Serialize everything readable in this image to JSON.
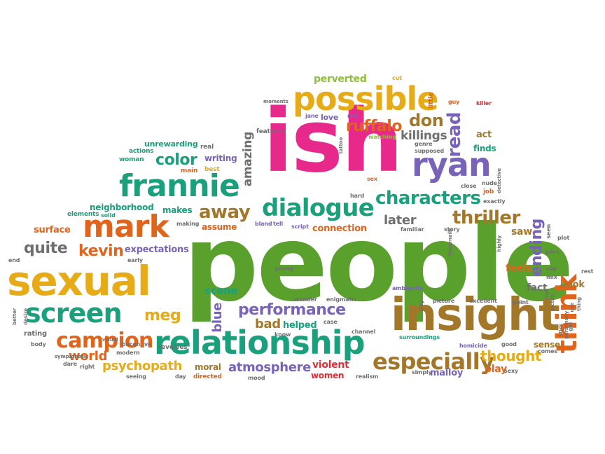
{
  "colors": {
    "green": "#5aa02c",
    "pink": "#e8298c",
    "yellow": "#e6ab17",
    "orange": "#e0641c",
    "teal": "#1aa07c",
    "purple": "#7863b8",
    "brown": "#a2772a",
    "gray": "#6f6f6f",
    "red": "#d8313a",
    "lime": "#8fbf3a"
  },
  "words": [
    {
      "text": "people",
      "color": "green"
    },
    {
      "text": "ish",
      "color": "pink"
    },
    {
      "text": "insight",
      "color": "brown"
    },
    {
      "text": "sexual",
      "color": "yellow"
    },
    {
      "text": "relationship",
      "color": "teal"
    },
    {
      "text": "possible",
      "color": "yellow"
    },
    {
      "text": "frannie",
      "color": "teal"
    },
    {
      "text": "mark",
      "color": "orange"
    },
    {
      "text": "ryan",
      "color": "purple"
    },
    {
      "text": "dialogue",
      "color": "teal"
    },
    {
      "text": "screen",
      "color": "teal"
    },
    {
      "text": "especially",
      "color": "brown"
    },
    {
      "text": "campion",
      "color": "orange"
    },
    {
      "text": "characters",
      "color": "teal"
    },
    {
      "text": "think",
      "color": "orange"
    },
    {
      "text": "performance",
      "color": "purple"
    },
    {
      "text": "away",
      "color": "brown"
    },
    {
      "text": "ruffalo",
      "color": "orange"
    },
    {
      "text": "don",
      "color": "brown"
    },
    {
      "text": "read",
      "color": "purple"
    },
    {
      "text": "thriller",
      "color": "brown"
    },
    {
      "text": "quite",
      "color": "gray"
    },
    {
      "text": "kevin",
      "color": "orange"
    },
    {
      "text": "color",
      "color": "teal"
    },
    {
      "text": "meg",
      "color": "yellow"
    },
    {
      "text": "psychopath",
      "color": "yellow"
    },
    {
      "text": "atmosphere",
      "color": "purple"
    },
    {
      "text": "thought",
      "color": "yellow"
    },
    {
      "text": "ending",
      "color": "purple"
    },
    {
      "text": "killings",
      "color": "gray"
    },
    {
      "text": "later",
      "color": "gray"
    },
    {
      "text": "world",
      "color": "orange"
    },
    {
      "text": "bad",
      "color": "brown"
    },
    {
      "text": "blue",
      "color": "purple"
    },
    {
      "text": "amazing",
      "color": "gray"
    },
    {
      "text": "perverted",
      "color": "lime"
    },
    {
      "text": "writing",
      "color": "purple"
    },
    {
      "text": "neighborhood",
      "color": "teal"
    },
    {
      "text": "makes",
      "color": "teal"
    },
    {
      "text": "expectations",
      "color": "purple"
    },
    {
      "text": "assume",
      "color": "orange"
    },
    {
      "text": "scene",
      "color": "teal"
    },
    {
      "text": "helped",
      "color": "teal"
    },
    {
      "text": "connection",
      "color": "orange"
    },
    {
      "text": "violent",
      "color": "red"
    },
    {
      "text": "women",
      "color": "red"
    },
    {
      "text": "malloy",
      "color": "purple"
    },
    {
      "text": "play",
      "color": "orange"
    },
    {
      "text": "feels",
      "color": "orange"
    },
    {
      "text": "fact",
      "color": "gray"
    },
    {
      "text": "saw",
      "color": "brown"
    },
    {
      "text": "book",
      "color": "brown"
    },
    {
      "text": "sense",
      "color": "brown"
    },
    {
      "text": "moral",
      "color": "brown"
    },
    {
      "text": "revolves",
      "color": "gray"
    },
    {
      "text": "finds",
      "color": "teal"
    },
    {
      "text": "act",
      "color": "brown"
    },
    {
      "text": "features",
      "color": "gray"
    },
    {
      "text": "love",
      "color": "purple"
    },
    {
      "text": "watching",
      "color": "lime"
    },
    {
      "text": "unrewarding",
      "color": "teal"
    },
    {
      "text": "surface",
      "color": "orange"
    },
    {
      "text": "elements",
      "color": "teal"
    },
    {
      "text": "solid",
      "color": "teal"
    },
    {
      "text": "actions",
      "color": "teal"
    },
    {
      "text": "woman",
      "color": "teal"
    },
    {
      "text": "real",
      "color": "gray"
    },
    {
      "text": "main",
      "color": "orange"
    },
    {
      "text": "best",
      "color": "yellow"
    },
    {
      "text": "making",
      "color": "gray"
    },
    {
      "text": "bland",
      "color": "purple"
    },
    {
      "text": "tell",
      "color": "purple"
    },
    {
      "text": "script",
      "color": "purple"
    },
    {
      "text": "familiar",
      "color": "gray"
    },
    {
      "text": "story",
      "color": "gray"
    },
    {
      "text": "hard",
      "color": "gray"
    },
    {
      "text": "sex",
      "color": "orange"
    },
    {
      "text": "job",
      "color": "orange"
    },
    {
      "text": "exactly",
      "color": "gray"
    },
    {
      "text": "close",
      "color": "gray"
    },
    {
      "text": "nude",
      "color": "gray"
    },
    {
      "text": "genre",
      "color": "gray"
    },
    {
      "text": "supposed",
      "color": "gray"
    },
    {
      "text": "cut",
      "color": "yellow"
    },
    {
      "text": "guy",
      "color": "orange"
    },
    {
      "text": "killer",
      "color": "red"
    },
    {
      "text": "little",
      "color": "orange"
    },
    {
      "text": "jane",
      "color": "purple"
    },
    {
      "text": "red",
      "color": "purple"
    },
    {
      "text": "moments",
      "color": "gray"
    },
    {
      "text": "end",
      "color": "gray"
    },
    {
      "text": "early",
      "color": "gray"
    },
    {
      "text": "young",
      "color": "gray"
    },
    {
      "text": "enigmatic",
      "color": "gray"
    },
    {
      "text": "wonder",
      "color": "gray"
    },
    {
      "text": "case",
      "color": "gray"
    },
    {
      "text": "channel",
      "color": "gray"
    },
    {
      "text": "know",
      "color": "gray"
    },
    {
      "text": "surroundings",
      "color": "teal"
    },
    {
      "text": "homicide",
      "color": "purple"
    },
    {
      "text": "ambiguity",
      "color": "purple"
    },
    {
      "text": "picture",
      "color": "gray"
    },
    {
      "text": "excellent",
      "color": "gray"
    },
    {
      "text": "point",
      "color": "gray"
    },
    {
      "text": "good",
      "color": "gray"
    },
    {
      "text": "comes",
      "color": "gray"
    },
    {
      "text": "sexy",
      "color": "gray"
    },
    {
      "text": "simply",
      "color": "gray"
    },
    {
      "text": "realism",
      "color": "gray"
    },
    {
      "text": "mood",
      "color": "gray"
    },
    {
      "text": "directed",
      "color": "orange"
    },
    {
      "text": "day",
      "color": "gray"
    },
    {
      "text": "seeing",
      "color": "gray"
    },
    {
      "text": "modern",
      "color": "gray"
    },
    {
      "text": "bacon",
      "color": "gray"
    },
    {
      "text": "ve",
      "color": "gray"
    },
    {
      "text": "visual",
      "color": "gray"
    },
    {
      "text": "rating",
      "color": "gray"
    },
    {
      "text": "body",
      "color": "gray"
    },
    {
      "text": "dare",
      "color": "gray"
    },
    {
      "text": "right",
      "color": "gray"
    },
    {
      "text": "sympathetic",
      "color": "gray"
    },
    {
      "text": "better",
      "color": "gray"
    },
    {
      "text": "desire",
      "color": "gray"
    },
    {
      "text": "stick",
      "color": "gray"
    },
    {
      "text": "girl",
      "color": "gray"
    },
    {
      "text": "true",
      "color": "gray"
    },
    {
      "text": "victim",
      "color": "gray"
    },
    {
      "text": "cop",
      "color": "gray"
    },
    {
      "text": "mix",
      "color": "gray"
    },
    {
      "text": "rest",
      "color": "gray"
    },
    {
      "text": "goes",
      "color": "gray"
    },
    {
      "text": "plot",
      "color": "gray"
    },
    {
      "text": "seen",
      "color": "gray"
    },
    {
      "text": "highly",
      "color": "gray"
    },
    {
      "text": "fingernails",
      "color": "gray"
    },
    {
      "text": "tattoo",
      "color": "gray"
    },
    {
      "text": "detective",
      "color": "gray"
    },
    {
      "text": "say",
      "color": "gray"
    },
    {
      "text": "use",
      "color": "gray"
    },
    {
      "text": "thing",
      "color": "gray"
    },
    {
      "text": "personally",
      "color": "gray"
    }
  ]
}
